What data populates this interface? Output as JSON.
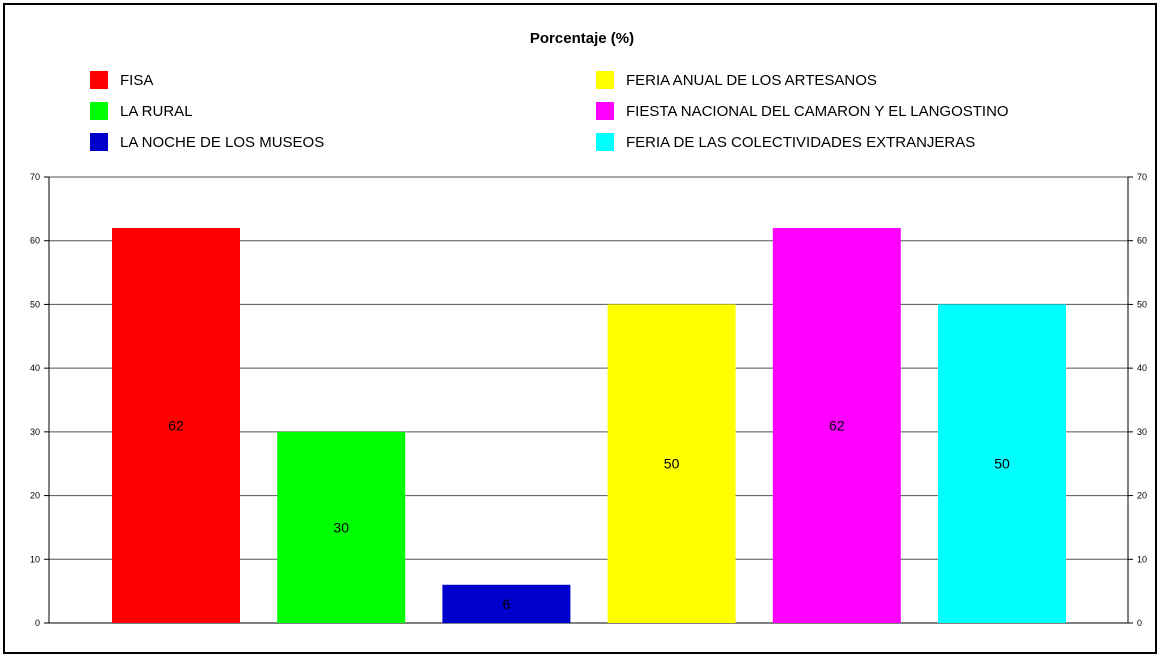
{
  "chart_data": {
    "type": "bar",
    "title": "Porcentaje (%)",
    "categories": [
      "FISA",
      "LA RURAL",
      "LA NOCHE DE LOS MUSEOS",
      "FERIA ANUAL DE LOS ARTESANOS",
      "FIESTA NACIONAL DEL CAMARON Y EL LANGOSTINO",
      "FERIA DE LAS COLECTIVIDADES EXTRANJERAS"
    ],
    "values": [
      62,
      30,
      6,
      50,
      62,
      50
    ],
    "data_labels": [
      "62",
      "30",
      "6",
      "50",
      "62",
      "50"
    ],
    "colors": [
      "#ff0000",
      "#00ff00",
      "#0000cc",
      "#ffff00",
      "#ff00ff",
      "#00ffff"
    ],
    "ylim": [
      0,
      70
    ],
    "yticks": [
      0,
      10,
      20,
      30,
      40,
      50,
      60,
      70
    ],
    "ytick_labels": [
      "0",
      "10",
      "20",
      "30",
      "40",
      "50",
      "60",
      "70"
    ],
    "secondary_y_axis": true,
    "grid": "horizontal",
    "legend": {
      "placement": "top",
      "entries": [
        {
          "label": "FISA",
          "color": "#ff0000"
        },
        {
          "label": "LA RURAL",
          "color": "#00ff00"
        },
        {
          "label": "LA NOCHE DE LOS MUSEOS",
          "color": "#0000cc"
        },
        {
          "label": "FERIA ANUAL DE LOS ARTESANOS",
          "color": "#ffff00"
        },
        {
          "label": "FIESTA NACIONAL DEL CAMARON Y EL LANGOSTINO",
          "color": "#ff00ff"
        },
        {
          "label": "FERIA DE LAS COLECTIVIDADES EXTRANJERAS",
          "color": "#00ffff"
        }
      ]
    }
  }
}
